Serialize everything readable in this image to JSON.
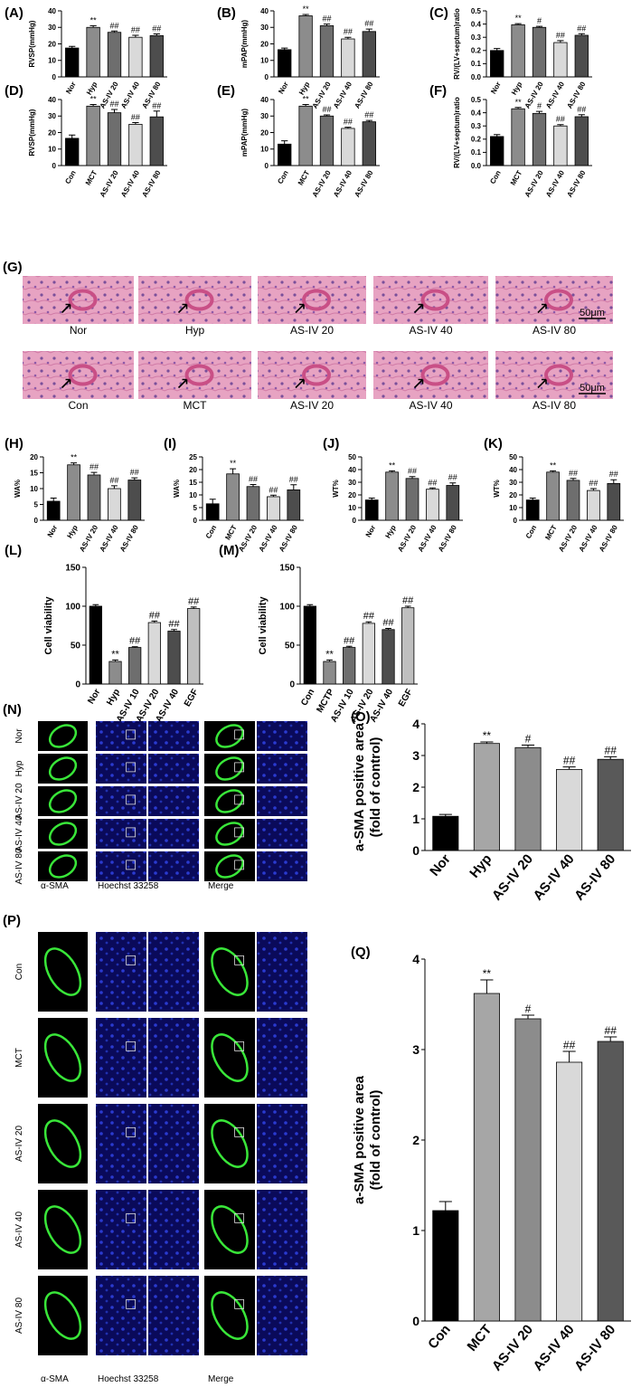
{
  "chart_data": [
    {
      "type": "bar",
      "panel": "(A)",
      "y_label": "RVSP(mmHg)",
      "categories": [
        "Nor",
        "Hyp",
        "AS-IV 20",
        "AS-IV 40",
        "AS-IV 80"
      ],
      "values": [
        17.5,
        30,
        27,
        24,
        25
      ],
      "errors": [
        1,
        1,
        0.8,
        1.2,
        1
      ],
      "annotations": [
        null,
        "**",
        "##",
        "##",
        "##"
      ],
      "colors": [
        "#000000",
        "#8c8c8c",
        "#6e6e6e",
        "#d9d9d9",
        "#4d4d4d"
      ],
      "ylim": [
        0,
        40
      ],
      "yticks": [
        0,
        10,
        20,
        30,
        40
      ]
    },
    {
      "type": "bar",
      "panel": "(B)",
      "y_label": "mPAP(mmHg)",
      "categories": [
        "Nor",
        "Hyp",
        "AS-IV 20",
        "AS-IV 40",
        "AS-IV 80"
      ],
      "values": [
        16.5,
        37,
        31,
        23,
        27.5
      ],
      "errors": [
        1,
        0.8,
        1,
        1,
        1.5
      ],
      "annotations": [
        null,
        "**",
        "##",
        "##",
        "##"
      ],
      "colors": [
        "#000000",
        "#8c8c8c",
        "#6e6e6e",
        "#d9d9d9",
        "#4d4d4d"
      ],
      "ylim": [
        0,
        40
      ],
      "yticks": [
        0,
        10,
        20,
        30,
        40
      ]
    },
    {
      "type": "bar",
      "panel": "(C)",
      "y_label": "RV/(LV+septum)ratio",
      "categories": [
        "Nor",
        "Hyp",
        "AS-IV 20",
        "AS-IV 40",
        "AS-IV 80"
      ],
      "values": [
        0.2,
        0.395,
        0.375,
        0.26,
        0.315
      ],
      "errors": [
        0.015,
        0.008,
        0.008,
        0.015,
        0.012
      ],
      "annotations": [
        null,
        "**",
        "#",
        "##",
        "##"
      ],
      "colors": [
        "#000000",
        "#8c8c8c",
        "#6e6e6e",
        "#d9d9d9",
        "#4d4d4d"
      ],
      "ylim": [
        0,
        0.5
      ],
      "yticks": [
        {
          "value": 0,
          "label": "0.0"
        },
        0.1,
        0.2,
        0.3,
        0.4,
        0.5
      ]
    },
    {
      "type": "bar",
      "panel": "(D)",
      "y_label": "RVSP(mmHg)",
      "categories": [
        "Con",
        "MCT",
        "AS-IV 20",
        "AS-IV 40",
        "AS-IV 80"
      ],
      "values": [
        16.5,
        36,
        32,
        25,
        29.5
      ],
      "errors": [
        2,
        1,
        2,
        1,
        3.5
      ],
      "annotations": [
        null,
        "**",
        "##",
        "##",
        "##"
      ],
      "colors": [
        "#000000",
        "#8c8c8c",
        "#6e6e6e",
        "#d9d9d9",
        "#4d4d4d"
      ],
      "ylim": [
        0,
        40
      ],
      "yticks": [
        0,
        10,
        20,
        30,
        40
      ]
    },
    {
      "type": "bar",
      "panel": "(E)",
      "y_label": "mPAP(mmHg)",
      "categories": [
        "Con",
        "MCT",
        "AS-IV 20",
        "AS-IV 40",
        "AS-IV 80"
      ],
      "values": [
        13,
        36,
        30,
        22.5,
        26.5
      ],
      "errors": [
        2,
        1,
        0.7,
        0.7,
        0.8
      ],
      "annotations": [
        null,
        "**",
        "##",
        "##",
        "##"
      ],
      "colors": [
        "#000000",
        "#8c8c8c",
        "#6e6e6e",
        "#d9d9d9",
        "#4d4d4d"
      ],
      "ylim": [
        0,
        40
      ],
      "yticks": [
        0,
        10,
        20,
        30,
        40
      ]
    },
    {
      "type": "bar",
      "panel": "(F)",
      "y_label": "RV/(LV+septum)ratio",
      "categories": [
        "Con",
        "MCT",
        "AS-IV 20",
        "AS-IV 40",
        "AS-IV 80"
      ],
      "values": [
        0.22,
        0.43,
        0.395,
        0.3,
        0.37
      ],
      "errors": [
        0.015,
        0.01,
        0.015,
        0.01,
        0.015
      ],
      "annotations": [
        null,
        "**",
        "#",
        "##",
        "##"
      ],
      "colors": [
        "#000000",
        "#8c8c8c",
        "#6e6e6e",
        "#d9d9d9",
        "#4d4d4d"
      ],
      "ylim": [
        0,
        0.5
      ],
      "yticks": [
        {
          "value": 0,
          "label": "0.0"
        },
        0.1,
        0.2,
        0.3,
        0.4,
        0.5
      ]
    },
    {
      "type": "bar",
      "panel": "(H)",
      "y_label": "WA%",
      "categories": [
        "Nor",
        "Hyp",
        "AS-IV 20",
        "AS-IV 40",
        "AS-IV 80"
      ],
      "values": [
        6,
        17.5,
        14.3,
        10,
        12.7
      ],
      "errors": [
        1,
        0.6,
        0.8,
        0.9,
        0.7
      ],
      "annotations": [
        null,
        "**",
        "##",
        "##",
        "##"
      ],
      "colors": [
        "#000000",
        "#8c8c8c",
        "#6e6e6e",
        "#d9d9d9",
        "#4d4d4d"
      ],
      "ylim": [
        0,
        20
      ],
      "yticks": [
        0,
        5,
        10,
        15,
        20
      ]
    },
    {
      "type": "bar",
      "panel": "(I)",
      "y_label": "WA%",
      "categories": [
        "Con",
        "MCT",
        "AS-IV 20",
        "AS-IV 40",
        "AS-IV 80"
      ],
      "values": [
        6.5,
        18.3,
        13.3,
        9.3,
        12
      ],
      "errors": [
        1.8,
        2,
        0.8,
        0.6,
        2
      ],
      "annotations": [
        null,
        "**",
        "##",
        "##",
        "##"
      ],
      "colors": [
        "#000000",
        "#8c8c8c",
        "#6e6e6e",
        "#d9d9d9",
        "#4d4d4d"
      ],
      "ylim": [
        0,
        25
      ],
      "yticks": [
        0,
        5,
        10,
        15,
        20,
        25
      ]
    },
    {
      "type": "bar",
      "panel": "(J)",
      "y_label": "WT%",
      "categories": [
        "Nor",
        "Hyp",
        "AS-IV 20",
        "AS-IV 40",
        "AS-IV 80"
      ],
      "values": [
        16,
        38,
        33,
        24.5,
        27.5
      ],
      "errors": [
        1.5,
        1,
        1.5,
        1,
        2
      ],
      "annotations": [
        null,
        "**",
        "##",
        "##",
        "##"
      ],
      "colors": [
        "#000000",
        "#8c8c8c",
        "#6e6e6e",
        "#d9d9d9",
        "#4d4d4d"
      ],
      "ylim": [
        0,
        50
      ],
      "yticks": [
        0,
        10,
        20,
        30,
        40,
        50
      ]
    },
    {
      "type": "bar",
      "panel": "(K)",
      "y_label": "WT%",
      "categories": [
        "Con",
        "MCT",
        "AS-IV 20",
        "AS-IV 40",
        "AS-IV 80"
      ],
      "values": [
        16,
        38,
        31.5,
        23.5,
        29
      ],
      "errors": [
        1.5,
        1,
        1.5,
        1.5,
        3
      ],
      "annotations": [
        null,
        "**",
        "##",
        "##",
        "##"
      ],
      "colors": [
        "#000000",
        "#8c8c8c",
        "#6e6e6e",
        "#d9d9d9",
        "#4d4d4d"
      ],
      "ylim": [
        0,
        50
      ],
      "yticks": [
        0,
        10,
        20,
        30,
        40,
        50
      ]
    },
    {
      "type": "bar",
      "panel": "(L)",
      "y_label": "Cell viability",
      "categories": [
        "Nor",
        "Hyp",
        "AS-IV 10",
        "AS-IV 20",
        "AS-IV 40",
        "EGF"
      ],
      "values": [
        100,
        29,
        47,
        79,
        68,
        97
      ],
      "errors": [
        2,
        2,
        1,
        2,
        2,
        2
      ],
      "annotations": [
        null,
        "**",
        "##",
        "##",
        "##",
        "##"
      ],
      "colors": [
        "#000000",
        "#8c8c8c",
        "#6e6e6e",
        "#d9d9d9",
        "#4d4d4d",
        "#bfbfbf"
      ],
      "ylim": [
        0,
        150
      ],
      "yticks": [
        0,
        50,
        100,
        150
      ]
    },
    {
      "type": "bar",
      "panel": "(M)",
      "y_label": "Cell viability",
      "categories": [
        "Con",
        "MCTP",
        "AS-IV 10",
        "AS-IV 20",
        "AS-IV 40",
        "EGF"
      ],
      "values": [
        100,
        29,
        47,
        78,
        70,
        98
      ],
      "errors": [
        2,
        2,
        1.5,
        2,
        1.5,
        2
      ],
      "annotations": [
        null,
        "**",
        "##",
        "##",
        "##",
        "##"
      ],
      "colors": [
        "#000000",
        "#8c8c8c",
        "#6e6e6e",
        "#d9d9d9",
        "#4d4d4d",
        "#bfbfbf"
      ],
      "ylim": [
        0,
        150
      ],
      "yticks": [
        0,
        50,
        100,
        150
      ]
    },
    {
      "type": "bar",
      "panel": "(O)",
      "y_label": [
        "a-SMA positive area",
        "(fold of control)"
      ],
      "categories": [
        "Nor",
        "Hyp",
        "AS-IV 20",
        "AS-IV 40",
        "AS-IV 80"
      ],
      "values": [
        1.08,
        3.38,
        3.25,
        2.56,
        2.88
      ],
      "errors": [
        0.06,
        0.05,
        0.08,
        0.08,
        0.08
      ],
      "annotations": [
        null,
        "**",
        "#",
        "##",
        "##"
      ],
      "colors": [
        "#000000",
        "#a6a6a6",
        "#8c8c8c",
        "#d9d9d9",
        "#595959"
      ],
      "ylim": [
        0,
        4
      ],
      "yticks": [
        0,
        1,
        2,
        3,
        4
      ]
    },
    {
      "type": "bar",
      "panel": "(Q)",
      "y_label": [
        "a-SMA positive area",
        "(fold of control)"
      ],
      "categories": [
        "Con",
        "MCT",
        "AS-IV 20",
        "AS-IV 40",
        "AS-IV 80"
      ],
      "values": [
        1.22,
        3.62,
        3.34,
        2.86,
        3.09
      ],
      "errors": [
        0.1,
        0.15,
        0.04,
        0.12,
        0.05
      ],
      "annotations": [
        null,
        "**",
        "#",
        "##",
        "##"
      ],
      "colors": [
        "#000000",
        "#a6a6a6",
        "#8c8c8c",
        "#d9d9d9",
        "#595959"
      ],
      "ylim": [
        0,
        4
      ],
      "yticks": [
        0,
        1,
        2,
        3,
        4
      ]
    }
  ],
  "image_panels": [
    {
      "panel": "(G)",
      "rows": [
        [
          "Nor",
          "Hyp",
          "AS-IV 20",
          "AS-IV 40",
          "AS-IV 80"
        ],
        [
          "Con",
          "MCT",
          "AS-IV 20",
          "AS-IV 40",
          "AS-IV 80"
        ]
      ],
      "scale_bar": "50μm"
    },
    {
      "panel": "(N)",
      "row_labels": [
        "Nor",
        "Hyp",
        "AS-IV 20",
        "AS-IV 40",
        "AS-IV 80"
      ],
      "column_labels": [
        "α-SMA",
        "Hoechst 33258",
        "Merge"
      ]
    },
    {
      "panel": "(P)",
      "row_labels": [
        "Con",
        "MCT",
        "AS-IV 20",
        "AS-IV 40",
        "AS-IV 80"
      ],
      "column_labels": [
        "α-SMA",
        "Hoechst 33258",
        "Merge"
      ]
    }
  ]
}
